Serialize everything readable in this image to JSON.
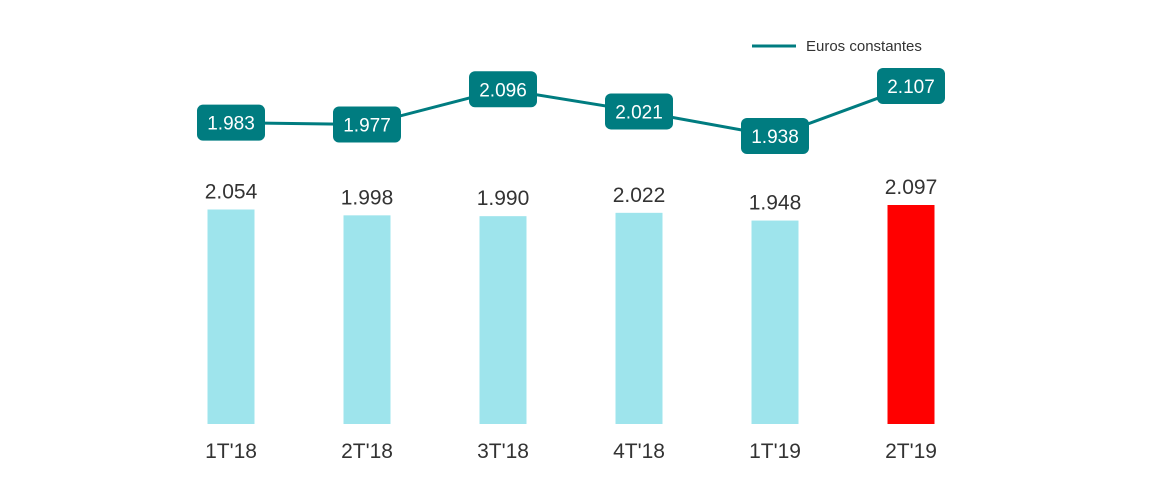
{
  "chart_data": {
    "type": "bar",
    "categories": [
      "1T'18",
      "2T'18",
      "3T'18",
      "4T'18",
      "1T'19",
      "2T'19"
    ],
    "bar_labels": [
      "2.054",
      "1.998",
      "1.990",
      "2.022",
      "1.948",
      "2.097"
    ],
    "bar_values": [
      2054,
      1998,
      1990,
      2022,
      1948,
      2097
    ],
    "bar_ylim": [
      0,
      2150
    ],
    "highlight_index": 5,
    "line": {
      "name": "Euros constantes",
      "labels": [
        "1.983",
        "1.977",
        "2.096",
        "2.021",
        "1.938",
        "2.107"
      ],
      "values": [
        1983,
        1977,
        2096,
        2021,
        1938,
        2107
      ]
    },
    "legend_position": "top-right",
    "grid": false,
    "colors": {
      "bar": "#9ee4ec",
      "bar_highlight": "#ff0000",
      "line": "#007c80",
      "label_box": "#007c80"
    }
  }
}
